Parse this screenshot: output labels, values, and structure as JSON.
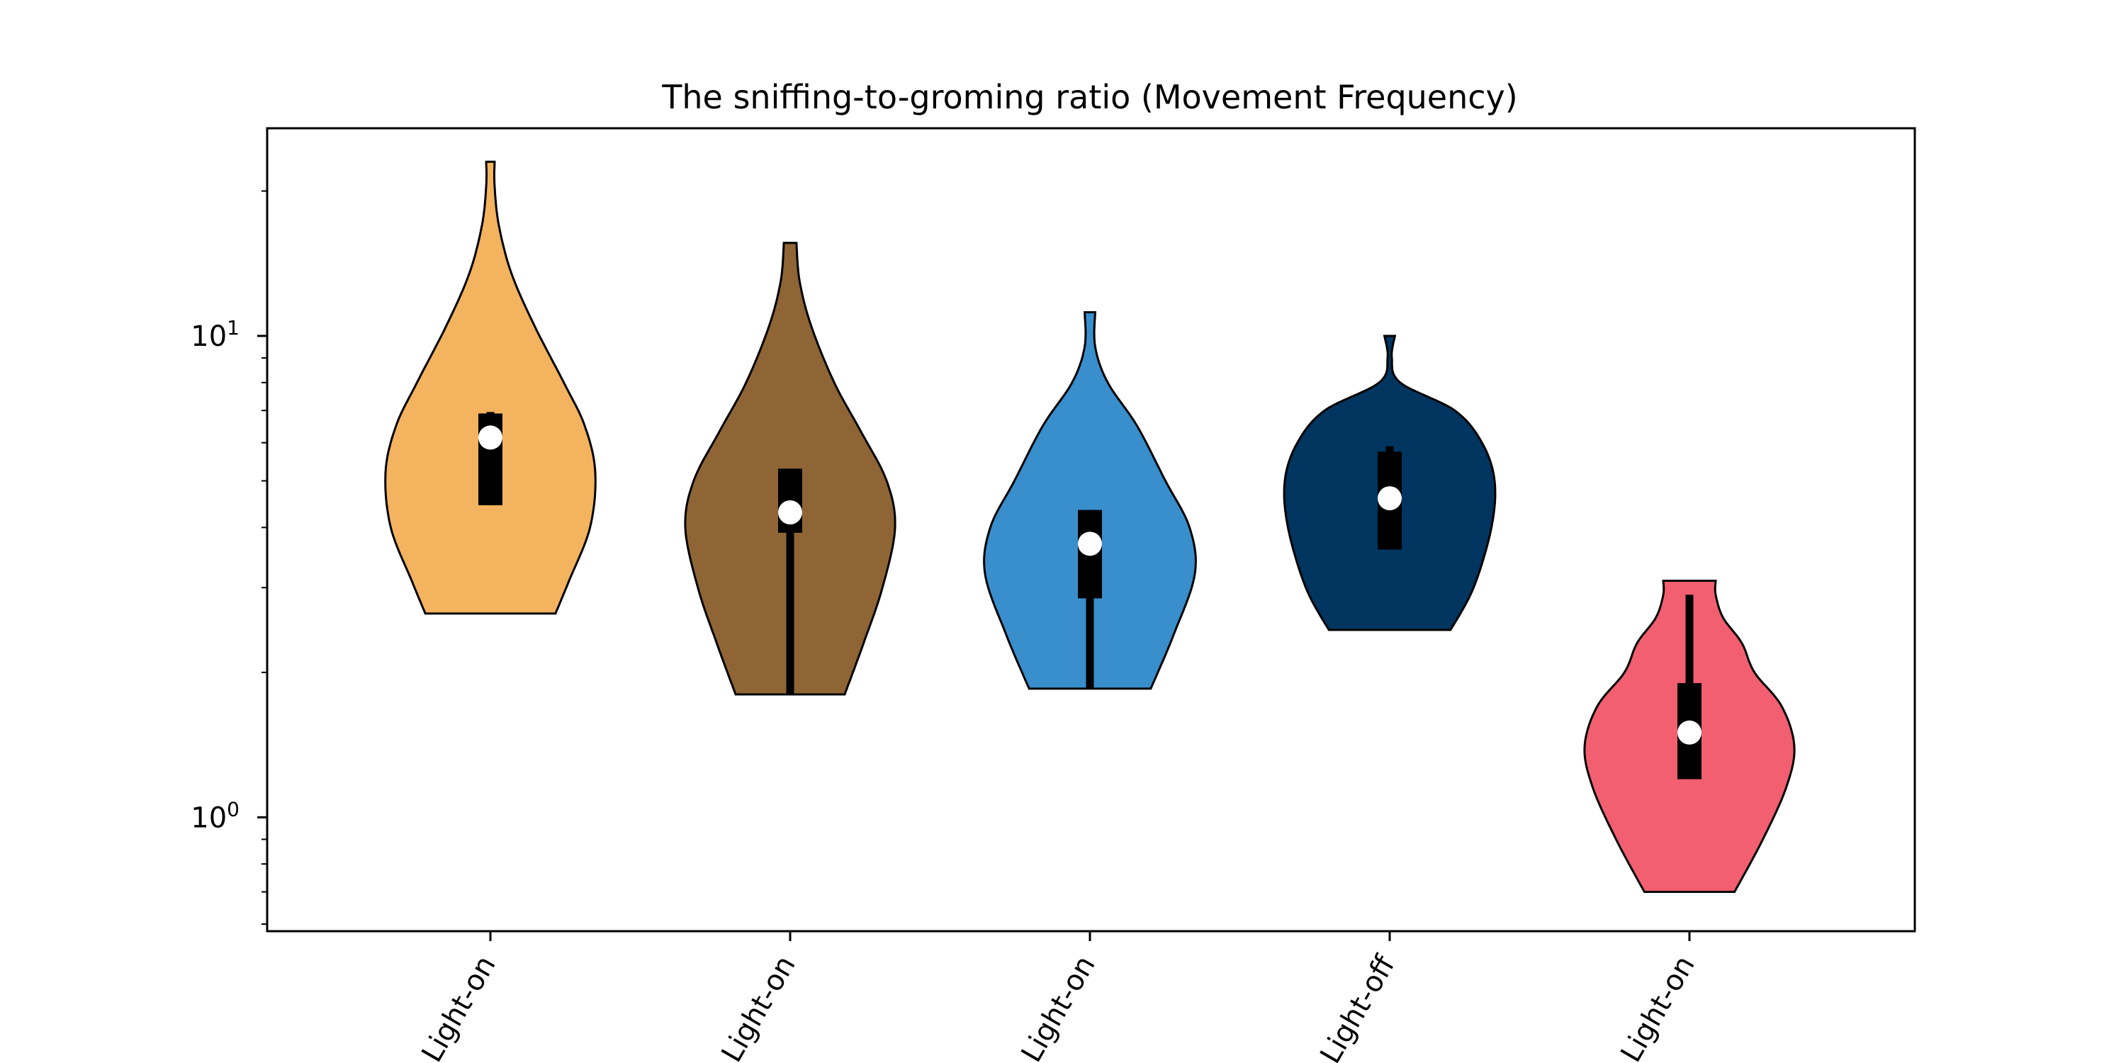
{
  "chart_data": {
    "type": "violin",
    "title": "The sniffing-to-groming ratio (Movement Frequency)",
    "xlabel": "",
    "ylabel": "",
    "yscale": "log",
    "ylim": [
      0.58,
      27
    ],
    "yticks": [
      {
        "value": 1,
        "base": "10",
        "exp": "0"
      },
      {
        "value": 10,
        "base": "10",
        "exp": "1"
      }
    ],
    "categories": [
      "Light-on",
      "Light-on",
      "Light-on",
      "Light-off",
      "Light-on"
    ],
    "series": [
      {
        "color": "#F4B35F",
        "min": 2.65,
        "max": 23.0,
        "q1": 4.45,
        "median": 6.15,
        "q3": 6.9,
        "whisker_low": 4.45,
        "whisker_high": 6.95,
        "profile": [
          [
            2.65,
            0.62
          ],
          [
            3.1,
            0.75
          ],
          [
            4.0,
            0.95
          ],
          [
            5.2,
            1.0
          ],
          [
            6.5,
            0.9
          ],
          [
            8.0,
            0.7
          ],
          [
            10.5,
            0.42
          ],
          [
            13.5,
            0.2
          ],
          [
            17.0,
            0.08
          ],
          [
            20.5,
            0.04
          ],
          [
            23.0,
            0.04
          ]
        ]
      },
      {
        "color": "#8F6535",
        "min": 1.8,
        "max": 15.6,
        "q1": 3.9,
        "median": 4.3,
        "q3": 5.3,
        "whisker_low": 1.8,
        "whisker_high": 5.3,
        "profile": [
          [
            1.8,
            0.52
          ],
          [
            2.3,
            0.7
          ],
          [
            3.0,
            0.88
          ],
          [
            4.0,
            1.0
          ],
          [
            5.0,
            0.92
          ],
          [
            6.3,
            0.68
          ],
          [
            8.0,
            0.42
          ],
          [
            10.5,
            0.2
          ],
          [
            13.0,
            0.09
          ],
          [
            15.6,
            0.06
          ]
        ]
      },
      {
        "color": "#398ECC",
        "min": 1.85,
        "max": 11.2,
        "q1": 2.85,
        "median": 3.7,
        "q3": 4.35,
        "whisker_low": 1.85,
        "whisker_high": 4.35,
        "profile": [
          [
            1.85,
            0.58
          ],
          [
            2.4,
            0.8
          ],
          [
            3.2,
            1.0
          ],
          [
            4.0,
            0.95
          ],
          [
            5.0,
            0.72
          ],
          [
            6.5,
            0.45
          ],
          [
            8.0,
            0.17
          ],
          [
            9.5,
            0.05
          ],
          [
            11.2,
            0.05
          ]
        ]
      },
      {
        "color": "#003560",
        "min": 2.45,
        "max": 10.0,
        "q1": 3.6,
        "median": 4.6,
        "q3": 5.75,
        "whisker_low": 3.6,
        "whisker_high": 5.9,
        "profile": [
          [
            2.45,
            0.58
          ],
          [
            3.0,
            0.8
          ],
          [
            4.0,
            0.97
          ],
          [
            5.0,
            1.0
          ],
          [
            6.0,
            0.88
          ],
          [
            7.0,
            0.62
          ],
          [
            8.0,
            0.1
          ],
          [
            9.0,
            0.02
          ],
          [
            10.0,
            0.05
          ]
        ]
      },
      {
        "color": "#F25F70",
        "min": 0.7,
        "max": 3.1,
        "q1": 1.2,
        "median": 1.5,
        "q3": 1.9,
        "whisker_low": 1.2,
        "whisker_high": 2.9,
        "profile": [
          [
            0.7,
            0.43
          ],
          [
            0.9,
            0.7
          ],
          [
            1.15,
            0.92
          ],
          [
            1.4,
            1.0
          ],
          [
            1.7,
            0.88
          ],
          [
            2.0,
            0.62
          ],
          [
            2.3,
            0.5
          ],
          [
            2.6,
            0.32
          ],
          [
            2.9,
            0.25
          ],
          [
            3.1,
            0.25
          ]
        ]
      }
    ]
  }
}
